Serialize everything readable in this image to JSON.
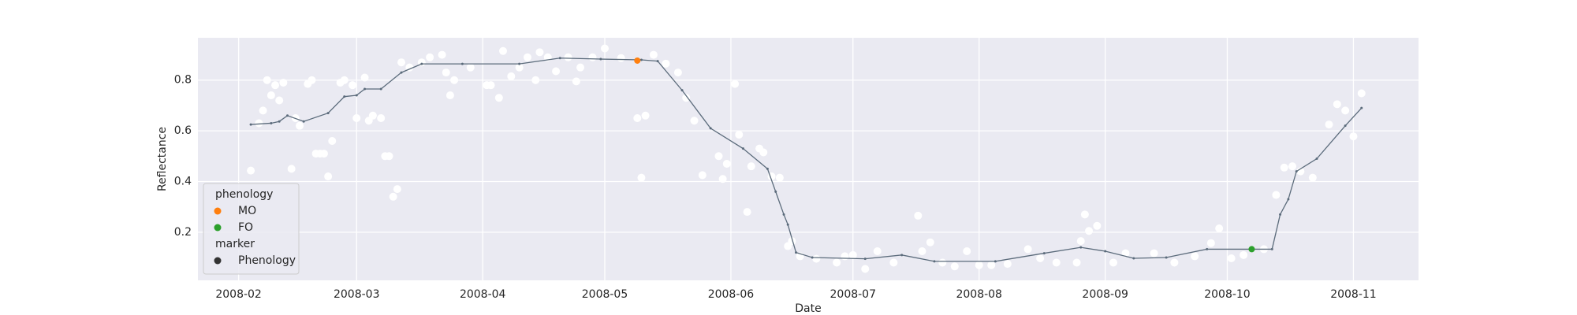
{
  "chart_data": {
    "type": "scatter",
    "xlabel": "Date",
    "ylabel": "Reflectance",
    "xlim": [
      21,
      321
    ],
    "xticks": [
      {
        "value": 31,
        "label": "2008-02"
      },
      {
        "value": 60,
        "label": "2008-03"
      },
      {
        "value": 91,
        "label": "2008-04"
      },
      {
        "value": 121,
        "label": "2008-05"
      },
      {
        "value": 152,
        "label": "2008-06"
      },
      {
        "value": 182,
        "label": "2008-07"
      },
      {
        "value": 213,
        "label": "2008-08"
      },
      {
        "value": 244,
        "label": "2008-09"
      },
      {
        "value": 274,
        "label": "2008-10"
      },
      {
        "value": 305,
        "label": "2008-11"
      }
    ],
    "ylim": [
      0.01,
      0.967
    ],
    "yticks": [
      0.2,
      0.4,
      0.6,
      0.8
    ],
    "grid": true,
    "background": "#eaeaf2",
    "observations": {
      "color": "#ffffff",
      "x": [
        34,
        36,
        37,
        38,
        39,
        40,
        41,
        42,
        44,
        45,
        46,
        48,
        49,
        50,
        51,
        52,
        53,
        54,
        56,
        57,
        59,
        60,
        62,
        63,
        64,
        66,
        67,
        68,
        69,
        70,
        71,
        73,
        76,
        78,
        81,
        82,
        83,
        84,
        88,
        92,
        93,
        95,
        96,
        98,
        100,
        102,
        104,
        105,
        107,
        109,
        112,
        114,
        115,
        118,
        121,
        125,
        129,
        130,
        131,
        133,
        136,
        139,
        141,
        143,
        145,
        149,
        150,
        151,
        153,
        154,
        156,
        157,
        159,
        160,
        162,
        164,
        166,
        167,
        169,
        173,
        178,
        180,
        182,
        185,
        188,
        192,
        198,
        199,
        201,
        204,
        207,
        210,
        213,
        216,
        220,
        225,
        228,
        232,
        237,
        238,
        239,
        240,
        242,
        246,
        249,
        256,
        261,
        266,
        270,
        272,
        275,
        278,
        283,
        286,
        288,
        290,
        292,
        295,
        299,
        301,
        303,
        305,
        307
      ],
      "values": [
        0.443,
        0.63,
        0.68,
        0.8,
        0.74,
        0.78,
        0.72,
        0.79,
        0.45,
        0.65,
        0.62,
        0.785,
        0.8,
        0.51,
        0.51,
        0.51,
        0.42,
        0.56,
        0.79,
        0.8,
        0.78,
        0.65,
        0.81,
        0.64,
        0.66,
        0.65,
        0.5,
        0.5,
        0.34,
        0.37,
        0.87,
        0.85,
        0.87,
        0.89,
        0.9,
        0.83,
        0.74,
        0.8,
        0.85,
        0.78,
        0.78,
        0.73,
        0.915,
        0.815,
        0.85,
        0.89,
        0.8,
        0.91,
        0.89,
        0.835,
        0.89,
        0.795,
        0.85,
        0.89,
        0.925,
        0.887,
        0.65,
        0.415,
        0.66,
        0.9,
        0.865,
        0.83,
        0.73,
        0.64,
        0.425,
        0.5,
        0.41,
        0.47,
        0.785,
        0.585,
        0.28,
        0.46,
        0.53,
        0.515,
        0.42,
        0.415,
        0.145,
        0.165,
        0.105,
        0.095,
        0.08,
        0.105,
        0.11,
        0.055,
        0.125,
        0.08,
        0.265,
        0.125,
        0.16,
        0.08,
        0.065,
        0.125,
        0.07,
        0.07,
        0.075,
        0.133,
        0.097,
        0.08,
        0.08,
        0.165,
        0.27,
        0.205,
        0.225,
        0.08,
        0.117,
        0.117,
        0.08,
        0.105,
        0.157,
        0.215,
        0.097,
        0.11,
        0.133,
        0.347,
        0.455,
        0.46,
        0.44,
        0.415,
        0.625,
        0.705,
        0.68,
        0.578,
        0.748
      ]
    },
    "fit": {
      "color": "#5b6b7b",
      "x": [
        34,
        39,
        41,
        43,
        47,
        53,
        57,
        60,
        62,
        66,
        71,
        76,
        86,
        100,
        110,
        120,
        130,
        134,
        140,
        147,
        155,
        161,
        163,
        165,
        166,
        168,
        172,
        185,
        194,
        202,
        217,
        229,
        238,
        244,
        251,
        259,
        269,
        280,
        285,
        287,
        289,
        291,
        296,
        303,
        307
      ],
      "values": [
        0.625,
        0.63,
        0.637,
        0.66,
        0.637,
        0.67,
        0.735,
        0.74,
        0.765,
        0.765,
        0.83,
        0.864,
        0.864,
        0.864,
        0.887,
        0.883,
        0.88,
        0.875,
        0.76,
        0.61,
        0.53,
        0.45,
        0.36,
        0.27,
        0.23,
        0.12,
        0.1,
        0.095,
        0.11,
        0.085,
        0.085,
        0.117,
        0.14,
        0.125,
        0.097,
        0.1,
        0.133,
        0.133,
        0.133,
        0.27,
        0.33,
        0.44,
        0.49,
        0.62,
        0.69
      ]
    },
    "series": [
      {
        "name": "MO",
        "color": "#ff7f0e",
        "x": [
          129
        ],
        "values": [
          0.877
        ]
      },
      {
        "name": "FO",
        "color": "#2ca02c",
        "x": [
          280
        ],
        "values": [
          0.133
        ]
      }
    ],
    "legend": {
      "corner": "lower left",
      "hue_title": "phenology",
      "style_title": "marker",
      "style_entries": [
        "Phenology"
      ],
      "style_color": "#333333"
    }
  }
}
